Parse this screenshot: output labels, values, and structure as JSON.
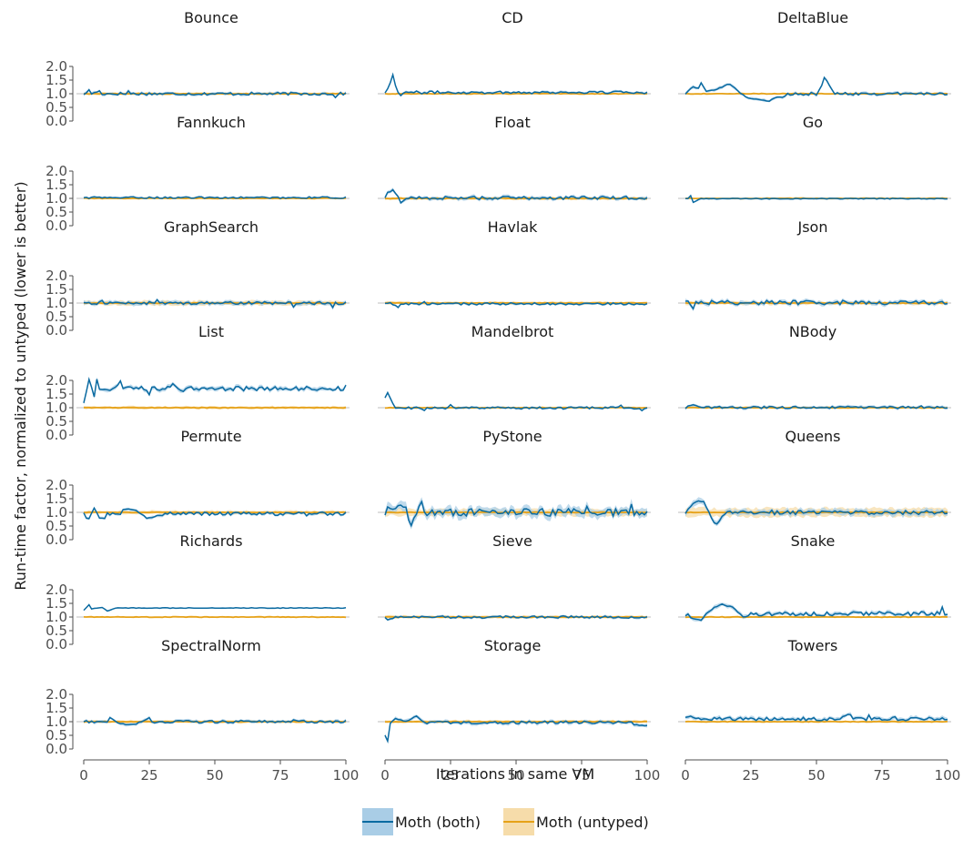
{
  "chart_data": {
    "type": "line",
    "layout": "facet-grid",
    "facet_columns": 3,
    "xlabel": "Iterations in same VM",
    "ylabel": "Run-time factor, normalized to untyped (lower is better)",
    "x_ticks": [
      0,
      25,
      50,
      75,
      100
    ],
    "y_ticks": [
      "0.0",
      "0.5",
      "1.0",
      "1.5",
      "2.0"
    ],
    "xlim": [
      0,
      100
    ],
    "ylim": [
      0,
      2.1
    ],
    "reference_line": 1.0,
    "legend_position": "bottom",
    "series": [
      {
        "name": "Moth (both)",
        "color": "#0a6aa1",
        "band_color": "#a9cde6"
      },
      {
        "name": "Moth (untyped)",
        "color": "#e6a219",
        "band_color": "#f6dcaa"
      }
    ],
    "panels": [
      {
        "title": "Bounce",
        "both_level": 1.0,
        "noise": 0.05,
        "band": 0.05,
        "untyped_band": 0.04,
        "features": [
          [
            2,
            1.15
          ],
          [
            3,
            1.0
          ],
          [
            6,
            1.1
          ],
          [
            17,
            1.1
          ],
          [
            96,
            0.85
          ]
        ]
      },
      {
        "title": "CD",
        "both_level": 1.05,
        "noise": 0.05,
        "band": 0.04,
        "untyped_band": 0.02,
        "features": [
          [
            1,
            1.2
          ],
          [
            2,
            1.4
          ],
          [
            3,
            1.7
          ],
          [
            4,
            1.3
          ],
          [
            5,
            1.05
          ],
          [
            6,
            0.95
          ]
        ]
      },
      {
        "title": "DeltaBlue",
        "both_level": 1.0,
        "noise": 0.05,
        "band": 0.05,
        "untyped_band": 0.02,
        "features": [
          [
            1,
            1.1
          ],
          [
            3,
            1.25
          ],
          [
            5,
            1.2
          ],
          [
            6,
            1.4
          ],
          [
            8,
            1.1
          ],
          [
            12,
            1.15
          ],
          [
            15,
            1.3
          ],
          [
            17,
            1.35
          ],
          [
            19,
            1.2
          ],
          [
            20,
            1.1
          ],
          [
            22,
            0.95
          ],
          [
            24,
            0.85
          ],
          [
            27,
            0.8
          ],
          [
            30,
            0.75
          ],
          [
            32,
            0.72
          ],
          [
            34,
            0.85
          ],
          [
            38,
            0.9
          ],
          [
            50,
            0.95
          ],
          [
            52,
            1.3
          ],
          [
            53,
            1.6
          ],
          [
            55,
            1.3
          ],
          [
            57,
            1.0
          ]
        ]
      },
      {
        "title": "Fannkuch",
        "both_level": 1.03,
        "noise": 0.03,
        "band": 0.03,
        "untyped_band": 0.02,
        "features": []
      },
      {
        "title": "Float",
        "both_level": 1.02,
        "noise": 0.06,
        "band": 0.06,
        "untyped_band": 0.05,
        "features": [
          [
            1,
            1.2
          ],
          [
            3,
            1.3
          ],
          [
            5,
            1.05
          ],
          [
            6,
            0.85
          ],
          [
            8,
            1.0
          ]
        ]
      },
      {
        "title": "Go",
        "both_level": 0.99,
        "noise": 0.015,
        "band": 0.03,
        "untyped_band": 0.02,
        "features": [
          [
            1,
            1.0
          ],
          [
            2,
            1.1
          ],
          [
            3,
            0.85
          ],
          [
            5,
            0.95
          ]
        ]
      },
      {
        "title": "GraphSearch",
        "both_level": 1.0,
        "noise": 0.05,
        "band": 0.07,
        "untyped_band": 0.08,
        "features": [
          [
            7,
            1.1
          ],
          [
            28,
            1.12
          ],
          [
            80,
            0.85
          ],
          [
            95,
            0.85
          ]
        ]
      },
      {
        "title": "Havlak",
        "both_level": 0.97,
        "noise": 0.04,
        "band": 0.04,
        "untyped_band": 0.05,
        "features": [
          [
            2,
            1.0
          ],
          [
            5,
            0.85
          ],
          [
            15,
            1.05
          ]
        ]
      },
      {
        "title": "Json",
        "both_level": 1.02,
        "noise": 0.08,
        "band": 0.07,
        "untyped_band": 0.06,
        "features": [
          [
            1,
            1.1
          ],
          [
            3,
            0.8
          ]
        ]
      },
      {
        "title": "List",
        "both_level": 1.7,
        "noise": 0.08,
        "band": 0.07,
        "untyped_band": 0.05,
        "features": [
          [
            0,
            1.15
          ],
          [
            2,
            2.05
          ],
          [
            3,
            1.75
          ],
          [
            4,
            1.4
          ],
          [
            5,
            2.05
          ],
          [
            6,
            1.7
          ],
          [
            10,
            1.6
          ],
          [
            14,
            1.95
          ],
          [
            25,
            1.5
          ],
          [
            34,
            1.85
          ],
          [
            38,
            1.6
          ],
          [
            58,
            1.8
          ],
          [
            75,
            1.75
          ],
          [
            100,
            1.8
          ]
        ]
      },
      {
        "title": "Mandelbrot",
        "both_level": 0.99,
        "noise": 0.04,
        "band": 0.04,
        "untyped_band": 0.02,
        "features": [
          [
            0,
            1.35
          ],
          [
            1,
            1.55
          ],
          [
            2,
            1.35
          ],
          [
            3,
            1.15
          ],
          [
            4,
            1.0
          ],
          [
            15,
            0.9
          ],
          [
            25,
            1.1
          ],
          [
            90,
            1.1
          ],
          [
            98,
            0.9
          ]
        ]
      },
      {
        "title": "NBody",
        "both_level": 1.01,
        "noise": 0.04,
        "band": 0.05,
        "untyped_band": 0.03,
        "features": [
          [
            1,
            1.05
          ],
          [
            3,
            1.1
          ],
          [
            6,
            1.0
          ],
          [
            90,
            1.08
          ]
        ]
      },
      {
        "title": "Permute",
        "both_level": 0.95,
        "noise": 0.06,
        "band": 0.05,
        "untyped_band": 0.06,
        "features": [
          [
            0,
            1.0
          ],
          [
            1,
            0.8
          ],
          [
            2,
            0.75
          ],
          [
            4,
            1.15
          ],
          [
            6,
            0.8
          ],
          [
            8,
            0.78
          ],
          [
            15,
            1.1
          ],
          [
            17,
            1.15
          ],
          [
            20,
            1.05
          ],
          [
            24,
            0.8
          ],
          [
            30,
            0.9
          ],
          [
            45,
            0.9
          ],
          [
            85,
            0.88
          ]
        ]
      },
      {
        "title": "PyStone",
        "both_level": 1.0,
        "noise": 0.14,
        "band": 0.15,
        "untyped_band": 0.12,
        "features": [
          [
            1,
            1.2
          ],
          [
            4,
            1.15
          ],
          [
            6,
            1.25
          ],
          [
            8,
            1.15
          ],
          [
            9,
            0.7
          ],
          [
            10,
            0.55
          ],
          [
            14,
            1.4
          ],
          [
            77,
            1.25
          ],
          [
            94,
            1.3
          ]
        ]
      },
      {
        "title": "Queens",
        "both_level": 1.0,
        "noise": 0.08,
        "band": 0.1,
        "untyped_band": 0.15,
        "features": [
          [
            1,
            1.1
          ],
          [
            3,
            1.35
          ],
          [
            5,
            1.45
          ],
          [
            7,
            1.4
          ],
          [
            8,
            1.2
          ],
          [
            11,
            0.6
          ],
          [
            12,
            0.55
          ],
          [
            14,
            0.85
          ],
          [
            16,
            1.0
          ]
        ]
      },
      {
        "title": "Richards",
        "both_level": 1.33,
        "noise": 0.012,
        "band": 0.02,
        "untyped_band": 0.01,
        "features": [
          [
            0,
            1.25
          ],
          [
            2,
            1.45
          ],
          [
            3,
            1.3
          ],
          [
            7,
            1.35
          ],
          [
            9,
            1.22
          ],
          [
            12,
            1.32
          ]
        ]
      },
      {
        "title": "Sieve",
        "both_level": 1.0,
        "noise": 0.04,
        "band": 0.04,
        "untyped_band": 0.05,
        "features": [
          [
            1,
            0.9
          ],
          [
            3,
            0.95
          ]
        ]
      },
      {
        "title": "Snake",
        "both_level": 1.12,
        "noise": 0.08,
        "band": 0.07,
        "untyped_band": 0.03,
        "features": [
          [
            0,
            1.05
          ],
          [
            1,
            1.1
          ],
          [
            2,
            0.95
          ],
          [
            6,
            0.9
          ],
          [
            9,
            1.2
          ],
          [
            12,
            1.4
          ],
          [
            14,
            1.45
          ],
          [
            18,
            1.35
          ],
          [
            22,
            1.0
          ],
          [
            24,
            1.05
          ],
          [
            98,
            1.35
          ]
        ]
      },
      {
        "title": "SpectralNorm",
        "both_level": 1.0,
        "noise": 0.05,
        "band": 0.05,
        "untyped_band": 0.05,
        "features": [
          [
            10,
            1.15
          ],
          [
            12,
            1.0
          ],
          [
            16,
            0.9
          ],
          [
            20,
            0.92
          ],
          [
            25,
            1.15
          ],
          [
            80,
            1.08
          ]
        ]
      },
      {
        "title": "Storage",
        "both_level": 0.97,
        "noise": 0.05,
        "band": 0.06,
        "untyped_band": 0.05,
        "features": [
          [
            0,
            0.5
          ],
          [
            1,
            0.3
          ],
          [
            2,
            0.95
          ],
          [
            4,
            1.1
          ],
          [
            8,
            1.0
          ],
          [
            12,
            1.2
          ],
          [
            14,
            1.05
          ],
          [
            95,
            0.9
          ],
          [
            100,
            0.85
          ]
        ]
      },
      {
        "title": "Towers",
        "both_level": 1.1,
        "noise": 0.06,
        "band": 0.07,
        "untyped_band": 0.03,
        "features": [
          [
            0,
            1.15
          ],
          [
            2,
            1.2
          ],
          [
            10,
            1.05
          ],
          [
            40,
            1.1
          ],
          [
            52,
            1.05
          ],
          [
            60,
            1.2
          ],
          [
            63,
            1.28
          ],
          [
            70,
            1.25
          ],
          [
            80,
            1.2
          ],
          [
            90,
            1.1
          ]
        ]
      }
    ]
  }
}
